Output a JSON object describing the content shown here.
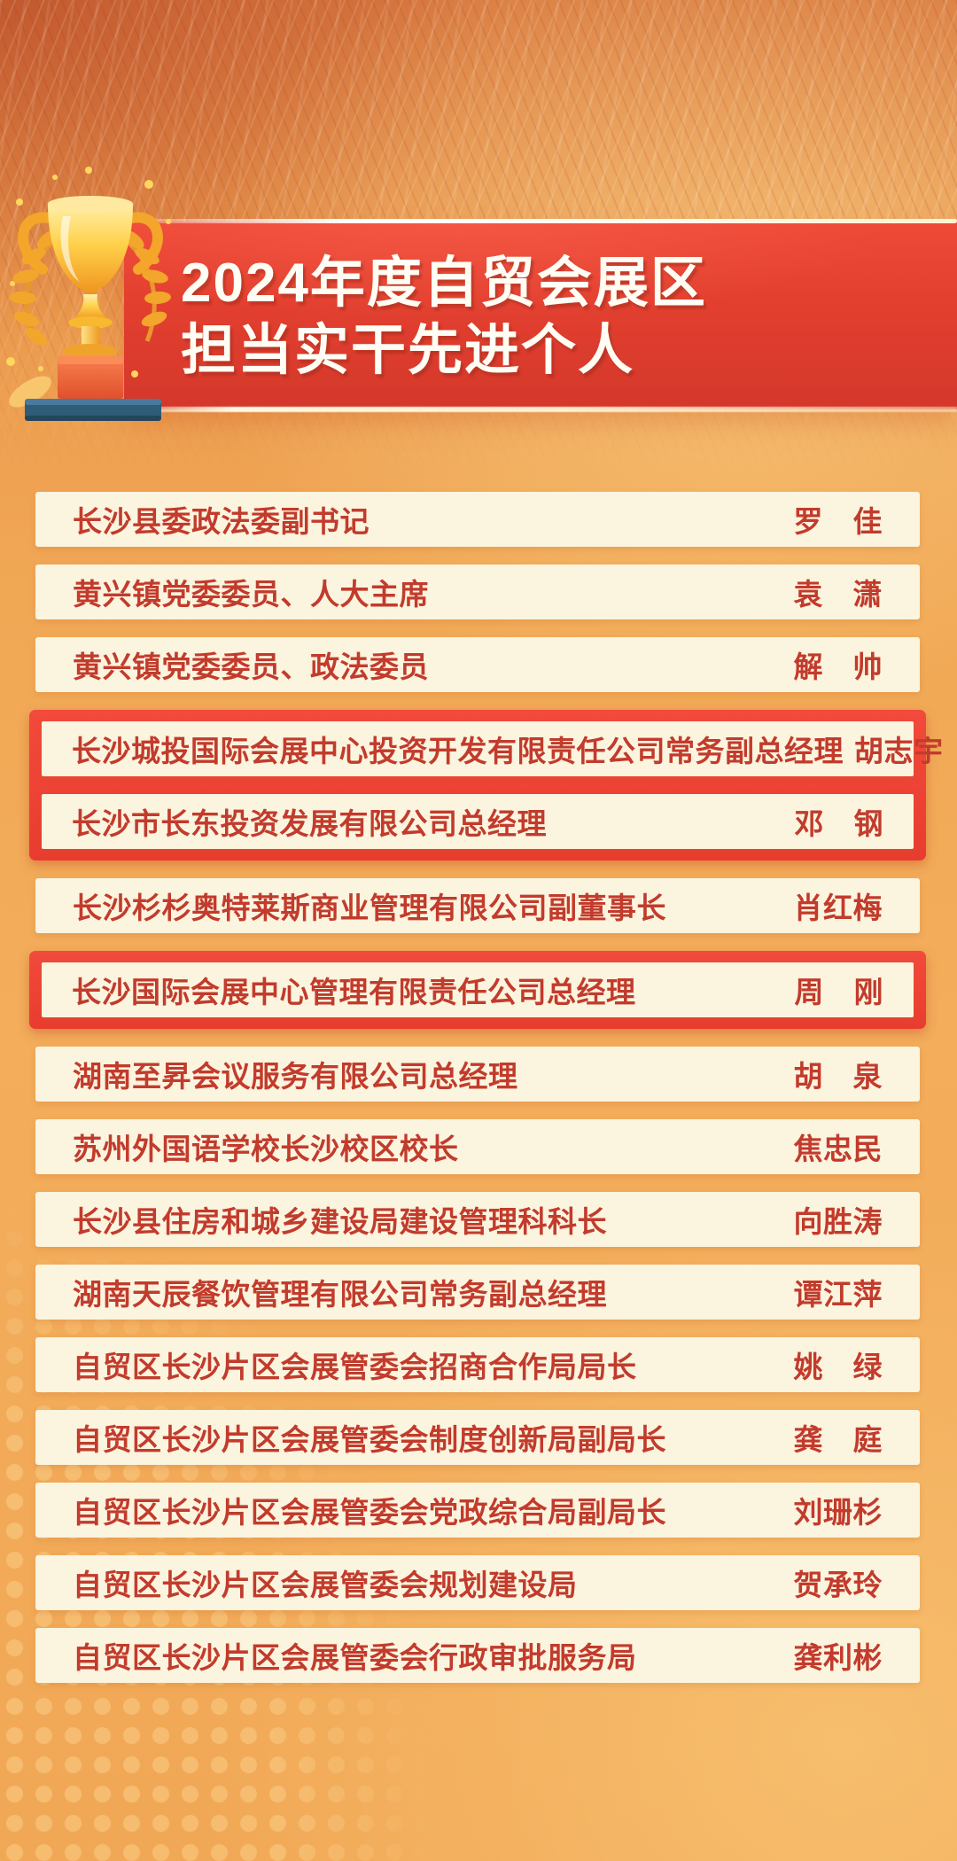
{
  "poster": {
    "title_line1": "2024年度自贸会展区",
    "title_line2": "担当实干先进个人"
  },
  "icons": {
    "trophy": "trophy-icon"
  },
  "colors": {
    "banner_red": "#e23f2f",
    "highlight_box_red": "#ee4136",
    "row_background": "#fbf4df",
    "row_text_red": "#c23b2c",
    "background_orange": "#f1a855",
    "title_text": "#fffdf4",
    "platform_blue": "#2f5d78",
    "trophy_gold": "#f6b92f"
  },
  "list": {
    "items": [
      {
        "position": "长沙县委政法委副书记",
        "name": "罗　佳",
        "highlighted": false
      },
      {
        "position": "黄兴镇党委委员、人大主席",
        "name": "袁　潇",
        "highlighted": false
      },
      {
        "position": "黄兴镇党委委员、政法委员",
        "name": "解　帅",
        "highlighted": false
      },
      {
        "position": "长沙城投国际会展中心投资开发有限责任公司常务副总经理",
        "name": "胡志宇",
        "highlighted": true
      },
      {
        "position": "长沙市长东投资发展有限公司总经理",
        "name": "邓　钢",
        "highlighted": true
      },
      {
        "position": "长沙杉杉奥特莱斯商业管理有限公司副董事长",
        "name": "肖红梅",
        "highlighted": false
      },
      {
        "position": "长沙国际会展中心管理有限责任公司总经理",
        "name": "周　刚",
        "highlighted": true
      },
      {
        "position": "湖南至昇会议服务有限公司总经理",
        "name": "胡　泉",
        "highlighted": false
      },
      {
        "position": "苏州外国语学校长沙校区校长",
        "name": "焦忠民",
        "highlighted": false
      },
      {
        "position": "长沙县住房和城乡建设局建设管理科科长",
        "name": "向胜涛",
        "highlighted": false
      },
      {
        "position": "湖南天辰餐饮管理有限公司常务副总经理",
        "name": "谭江萍",
        "highlighted": false
      },
      {
        "position": "自贸区长沙片区会展管委会招商合作局局长",
        "name": "姚　绿",
        "highlighted": false
      },
      {
        "position": "自贸区长沙片区会展管委会制度创新局副局长",
        "name": "龚　庭",
        "highlighted": false
      },
      {
        "position": "自贸区长沙片区会展管委会党政综合局副局长",
        "name": "刘珊杉",
        "highlighted": false
      },
      {
        "position": "自贸区长沙片区会展管委会规划建设局",
        "name": "贺承玲",
        "highlighted": false
      },
      {
        "position": "自贸区长沙片区会展管委会行政审批服务局",
        "name": "龚利彬",
        "highlighted": false
      }
    ]
  }
}
